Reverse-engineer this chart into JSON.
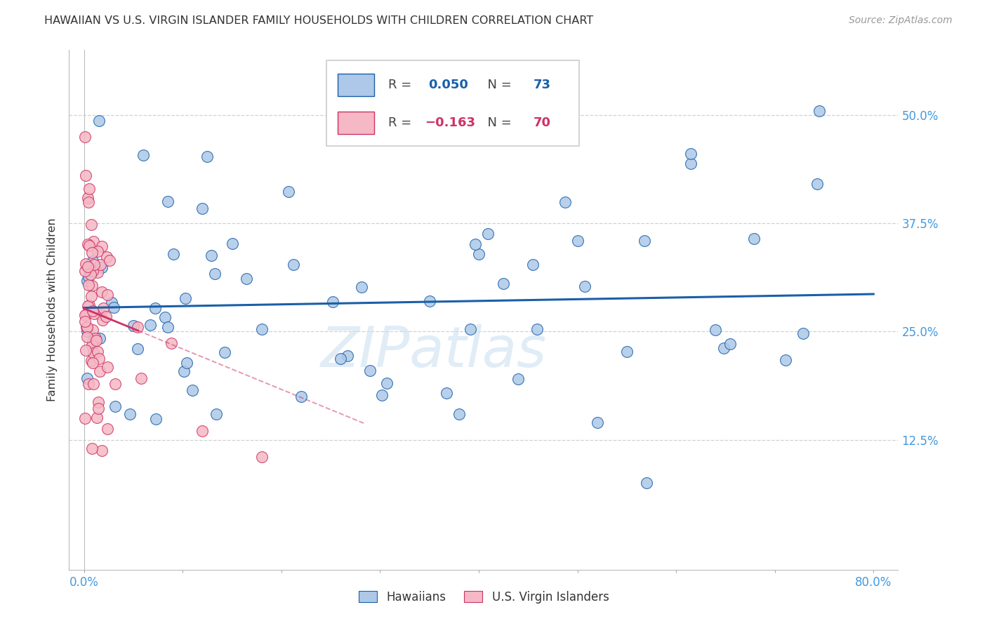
{
  "title": "HAWAIIAN VS U.S. VIRGIN ISLANDER FAMILY HOUSEHOLDS WITH CHILDREN CORRELATION CHART",
  "source": "Source: ZipAtlas.com",
  "ylabel": "Family Households with Children",
  "xlim": [
    -0.015,
    0.825
  ],
  "ylim": [
    -0.025,
    0.575
  ],
  "x_ticks": [
    0.0,
    0.1,
    0.2,
    0.3,
    0.4,
    0.5,
    0.6,
    0.7,
    0.8
  ],
  "y_ticks": [
    0.125,
    0.25,
    0.375,
    0.5
  ],
  "y_tick_labels": [
    "12.5%",
    "25.0%",
    "37.5%",
    "50.0%"
  ],
  "hawaiians_R": 0.05,
  "hawaiians_N": 73,
  "virgin_R": -0.163,
  "virgin_N": 70,
  "blue_dot_color": "#adc8e8",
  "blue_line_color": "#1a5fa8",
  "pink_dot_color": "#f5b8c4",
  "pink_line_color": "#cc3366",
  "grid_color": "#cccccc",
  "tick_label_color": "#4499dd",
  "title_color": "#333333",
  "source_color": "#999999",
  "ylabel_color": "#333333",
  "watermark_color": "#cce0f0",
  "watermark_alpha": 0.6
}
